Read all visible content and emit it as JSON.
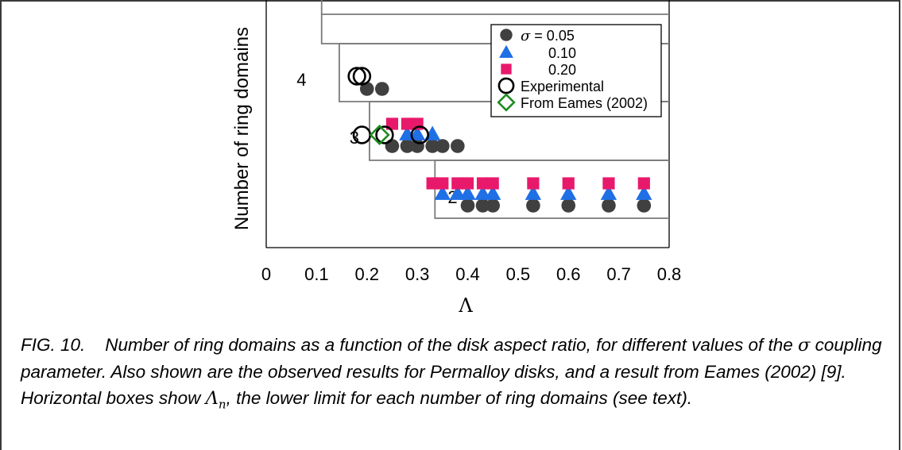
{
  "chart_data": {
    "type": "scatter",
    "xlabel": "Λ",
    "ylabel": "Number of ring domains",
    "xlim": [
      0,
      0.8
    ],
    "x_ticks": [
      "0",
      "0.1",
      "0.2",
      "0.3",
      "0.4",
      "0.5",
      "0.6",
      "0.7",
      "0.8"
    ],
    "grid": false,
    "legend_position": "top-right",
    "band_labels": [
      {
        "text": "4",
        "ring_domains": 4,
        "label_x": 0.07
      },
      {
        "text": "3",
        "ring_domains": 3,
        "label_x": 0.175
      },
      {
        "text": "2",
        "ring_domains": 2,
        "label_x": 0.37
      }
    ],
    "lower_limit_boxes": [
      {
        "n": 5,
        "lambda_n": 0.11
      },
      {
        "n": 4,
        "lambda_n": 0.145
      },
      {
        "n": 3,
        "lambda_n": 0.205
      },
      {
        "n": 2,
        "lambda_n": 0.335
      }
    ],
    "series": [
      {
        "name": "σ = 0.05",
        "marker": "filled-circle",
        "color": "#404040",
        "points": [
          {
            "x": 0.2,
            "y": 4
          },
          {
            "x": 0.23,
            "y": 4
          },
          {
            "x": 0.25,
            "y": 3
          },
          {
            "x": 0.28,
            "y": 3
          },
          {
            "x": 0.3,
            "y": 3
          },
          {
            "x": 0.33,
            "y": 3
          },
          {
            "x": 0.35,
            "y": 3
          },
          {
            "x": 0.38,
            "y": 3
          },
          {
            "x": 0.4,
            "y": 2
          },
          {
            "x": 0.43,
            "y": 2
          },
          {
            "x": 0.45,
            "y": 2
          },
          {
            "x": 0.53,
            "y": 2
          },
          {
            "x": 0.6,
            "y": 2
          },
          {
            "x": 0.68,
            "y": 2
          },
          {
            "x": 0.75,
            "y": 2
          }
        ]
      },
      {
        "name": "0.10",
        "marker": "triangle",
        "color": "#1f6fe5",
        "points": [
          {
            "x": 0.28,
            "y": 3
          },
          {
            "x": 0.3,
            "y": 3
          },
          {
            "x": 0.33,
            "y": 3
          },
          {
            "x": 0.35,
            "y": 2
          },
          {
            "x": 0.38,
            "y": 2
          },
          {
            "x": 0.4,
            "y": 2
          },
          {
            "x": 0.43,
            "y": 2
          },
          {
            "x": 0.45,
            "y": 2
          },
          {
            "x": 0.53,
            "y": 2
          },
          {
            "x": 0.6,
            "y": 2
          },
          {
            "x": 0.68,
            "y": 2
          },
          {
            "x": 0.75,
            "y": 2
          }
        ]
      },
      {
        "name": "0.20",
        "marker": "square",
        "color": "#e8196b",
        "points": [
          {
            "x": 0.25,
            "y": 3
          },
          {
            "x": 0.28,
            "y": 3
          },
          {
            "x": 0.3,
            "y": 3
          },
          {
            "x": 0.33,
            "y": 2
          },
          {
            "x": 0.35,
            "y": 2
          },
          {
            "x": 0.38,
            "y": 2
          },
          {
            "x": 0.4,
            "y": 2
          },
          {
            "x": 0.43,
            "y": 2
          },
          {
            "x": 0.45,
            "y": 2
          },
          {
            "x": 0.53,
            "y": 2
          },
          {
            "x": 0.6,
            "y": 2
          },
          {
            "x": 0.68,
            "y": 2
          },
          {
            "x": 0.75,
            "y": 2
          }
        ]
      },
      {
        "name": "Experimental",
        "marker": "open-circle",
        "color": "#000000",
        "points": [
          {
            "x": 0.18,
            "y": 4
          },
          {
            "x": 0.19,
            "y": 4
          },
          {
            "x": 0.19,
            "y": 3
          },
          {
            "x": 0.235,
            "y": 3
          },
          {
            "x": 0.305,
            "y": 3
          }
        ]
      },
      {
        "name": "From Eames (2002)",
        "marker": "open-diamond",
        "color": "#1e8c1e",
        "points": [
          {
            "x": 0.225,
            "y": 3
          }
        ]
      }
    ]
  },
  "caption": {
    "fig": "FIG. 10.",
    "text_before_lambda": "Number of ring domains as a function of the disk aspect ratio, for different values of the",
    "sigma": "σ",
    "text_after_sigma": "coupling parameter. Also shown are the observed results for Permalloy disks, and a result from Eames (2002) [9]. Horizontal boxes show",
    "lambda": "Λ",
    "lambda_sub": "n",
    "text_end": ", the lower limit for each number of ring domains (see text)."
  }
}
